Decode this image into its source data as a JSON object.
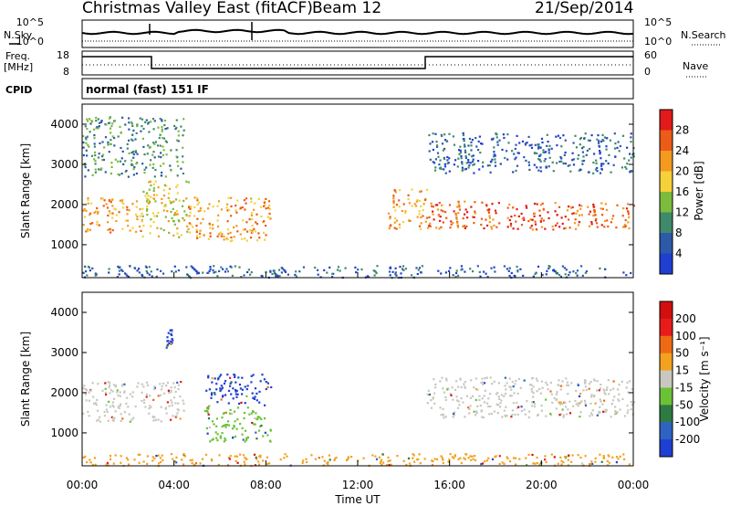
{
  "header": {
    "title": "Christmas Valley East (fitACF)",
    "beam": "Beam 12",
    "date": "21/Sep/2014"
  },
  "strip_labels": {
    "nsky": "N.Sky",
    "nsearch": "N.Search",
    "freq_line1": "Freq.",
    "freq_line2": "[MHz]",
    "nave": "Nave",
    "cpid": "CPID",
    "cpid_value": "normal (fast) 151 IF"
  },
  "noise_axis": {
    "left_ticks": [
      "10^5",
      "10^0"
    ],
    "right_ticks": [
      "10^5",
      "10^0"
    ]
  },
  "freq_axis": {
    "left_ticks": [
      "18",
      "8"
    ],
    "right_ticks": [
      "60",
      "0"
    ]
  },
  "chart_data": [
    {
      "type": "heatmap",
      "name": "power-panel",
      "ylabel": "Slant Range [km]",
      "xlabel": "",
      "yticks": [
        "1000",
        "2000",
        "3000",
        "4000"
      ],
      "ylim": [
        180,
        4500
      ],
      "colorbar": {
        "label": "Power [dB]",
        "ticks": [
          "4",
          "8",
          "12",
          "16",
          "20",
          "24",
          "28"
        ],
        "colors": [
          "#1f3fd2",
          "#2c5aa8",
          "#3f8a6a",
          "#7dbb3c",
          "#f5d13a",
          "#f39a1f",
          "#ec5b17",
          "#e21a1a"
        ]
      },
      "echo_regions": [
        {
          "t": [
            0.0,
            2.6
          ],
          "r": [
            1300,
            2200
          ],
          "level": 5
        },
        {
          "t": [
            2.6,
            4.6
          ],
          "r": [
            1200,
            2600
          ],
          "level": 4
        },
        {
          "t": [
            4.6,
            8.2
          ],
          "r": [
            1100,
            2200
          ],
          "level": 5
        },
        {
          "t": [
            0.0,
            4.4
          ],
          "r": [
            2700,
            4200
          ],
          "level": 2
        },
        {
          "t": [
            13.3,
            15.0
          ],
          "r": [
            1400,
            2400
          ],
          "level": 5
        },
        {
          "t": [
            15.0,
            24.0
          ],
          "r": [
            1400,
            2100
          ],
          "level": 6
        },
        {
          "t": [
            15.0,
            24.0
          ],
          "r": [
            2800,
            3800
          ],
          "level": 1
        },
        {
          "t": [
            0.0,
            24.0
          ],
          "r": [
            200,
            500
          ],
          "level": 1
        }
      ]
    },
    {
      "type": "heatmap",
      "name": "velocity-panel",
      "ylabel": "Slant Range [km]",
      "xlabel": "Time UT",
      "xticks": [
        "00:00",
        "04:00",
        "08:00",
        "12:00",
        "16:00",
        "20:00",
        "00:00"
      ],
      "yticks": [
        "1000",
        "2000",
        "3000",
        "4000"
      ],
      "ylim": [
        180,
        4500
      ],
      "colorbar": {
        "label": "Velocity [m s⁻¹]",
        "ticks": [
          "200",
          "100",
          "50",
          "15",
          "-15",
          "-50",
          "-100",
          "-200"
        ],
        "colors": [
          "#1f3fd2",
          "#2f63c3",
          "#2e7a43",
          "#6cc236",
          "#c8c8c0",
          "#f3a11f",
          "#ef6a14",
          "#e81b1b",
          "#d20f0f"
        ]
      },
      "echo_regions": [
        {
          "t": [
            0.0,
            4.4
          ],
          "r": [
            1300,
            2300
          ],
          "level": "gray"
        },
        {
          "t": [
            3.6,
            3.9
          ],
          "r": [
            3100,
            3600
          ],
          "level": "blue"
        },
        {
          "t": [
            5.3,
            8.2
          ],
          "r": [
            1700,
            2500
          ],
          "level": "blue"
        },
        {
          "t": [
            5.3,
            8.2
          ],
          "r": [
            800,
            1700
          ],
          "level": "green"
        },
        {
          "t": [
            15.0,
            24.0
          ],
          "r": [
            1400,
            2400
          ],
          "level": "gray"
        },
        {
          "t": [
            0.0,
            24.0
          ],
          "r": [
            200,
            500
          ],
          "level": "orange"
        }
      ]
    }
  ]
}
